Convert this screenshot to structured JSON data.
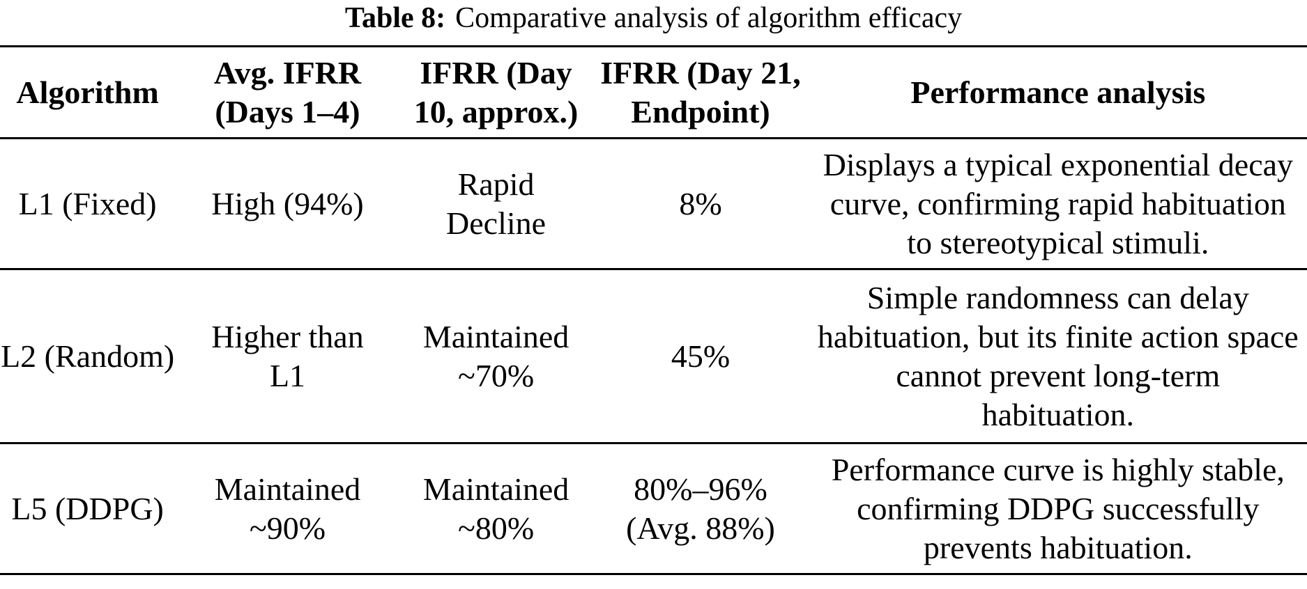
{
  "caption": {
    "label": "Table 8:",
    "text": "Comparative analysis of algorithm efficacy"
  },
  "table": {
    "headers": [
      "Algorithm",
      [
        "Avg. IFRR",
        "(Days 1–4)"
      ],
      [
        "IFRR (Day",
        "10, approx.)"
      ],
      [
        "IFRR (Day 21,",
        "Endpoint)"
      ],
      "Performance analysis"
    ],
    "rows": [
      {
        "algorithm": "L1 (Fixed)",
        "avg_ifrr_days_1_4": "High (94%)",
        "ifrr_day_10": [
          "Rapid",
          "Decline"
        ],
        "ifrr_day_21": "8%",
        "performance_analysis": [
          "Displays a typical exponential decay",
          "curve, confirming rapid habituation",
          "to stereotypical stimuli."
        ]
      },
      {
        "algorithm": "L2 (Random)",
        "avg_ifrr_days_1_4": [
          "Higher than",
          "L1"
        ],
        "ifrr_day_10": [
          "Maintained",
          "~70%"
        ],
        "ifrr_day_21": "45%",
        "performance_analysis": [
          "Simple randomness can delay",
          "habituation, but its finite action space",
          "cannot prevent long-term",
          "habituation."
        ]
      },
      {
        "algorithm": "L5 (DDPG)",
        "avg_ifrr_days_1_4": [
          "Maintained",
          "~90%"
        ],
        "ifrr_day_10": [
          "Maintained",
          "~80%"
        ],
        "ifrr_day_21": [
          "80%–96%",
          "(Avg. 88%)"
        ],
        "performance_analysis": [
          "Performance curve is highly stable,",
          "confirming DDPG successfully",
          "prevents habituation."
        ]
      }
    ]
  }
}
